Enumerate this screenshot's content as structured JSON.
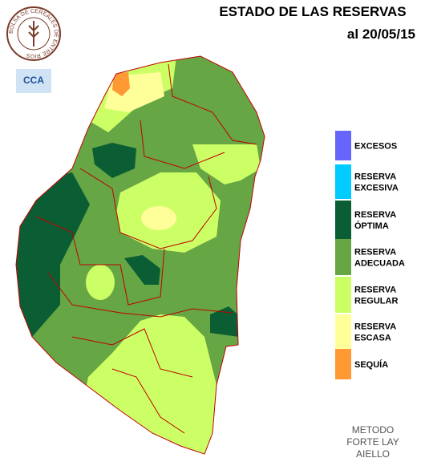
{
  "header": {
    "title": "ESTADO DE LAS RESERVAS",
    "date": "al 20/05/15"
  },
  "logo": {
    "ring_text": "BOLSA DE CEREALES DE ENTRE RIOS",
    "badge": "CCA"
  },
  "legend": [
    {
      "lines": [
        "EXCESOS"
      ],
      "color": "#6666ff"
    },
    {
      "lines": [
        "RESERVA",
        "EXCESIVA"
      ],
      "color": "#00ccff"
    },
    {
      "lines": [
        "RESERVA",
        "ÓPTIMA"
      ],
      "color": "#0b5e34"
    },
    {
      "lines": [
        "RESERVA",
        "ADECUADA"
      ],
      "color": "#66a644"
    },
    {
      "lines": [
        "RESERVA",
        "REGULAR"
      ],
      "color": "#ccff66"
    },
    {
      "lines": [
        "RESERVA",
        "ESCASA"
      ],
      "color": "#ffff99"
    },
    {
      "lines": [
        "SEQUÍA"
      ],
      "color": "#ff9933"
    }
  ],
  "footer": {
    "lines": [
      "METODO",
      "FORTE LAY",
      "AIELLO"
    ]
  }
}
